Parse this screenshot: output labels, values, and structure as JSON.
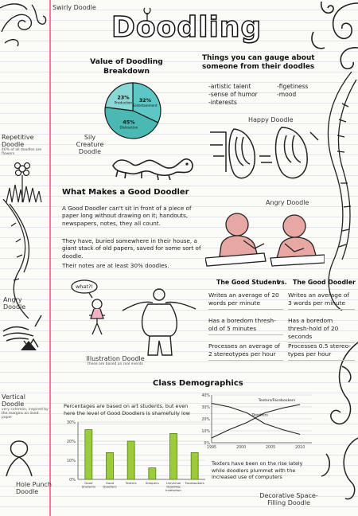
{
  "header": {
    "title": "Doodling"
  },
  "labels": {
    "swirly": "Swirly Doodle",
    "repetitive": "Repetitive Doodle",
    "repetitive_note": "40% of all doodles are flowers",
    "sily_creature": "Sily Creature Doodle",
    "happy": "Happy Doodle",
    "angry_right": "Angry Doodle",
    "angry_left": "Angry Doodle",
    "illustration": "Illustration Doodle",
    "illustration_note": "these are based on real events",
    "vertical": "Vertical Doodle",
    "vertical_note": "very common, inspired by the margins on lined paper",
    "hole_punch": "Hole Punch Doodle",
    "decorative": "Decorative Space-Filling Doodle",
    "speech_bubble": "what?!"
  },
  "value_section": {
    "title": "Value of Doodling Breakdown"
  },
  "gauge": {
    "title": "Things you can gauge about someone from their doodles",
    "traits_left": [
      "-artistic talent",
      "-sense of humor",
      "-interests"
    ],
    "traits_right": [
      "-figetiness",
      "-mood"
    ]
  },
  "good_doodler": {
    "title": "What Makes a Good Doodler",
    "paragraphs": [
      "A Good Doodler can't sit in front of a piece of paper long without drawing on it; handouts, newspapers, notes, they all count.",
      "They have, buried somewhere in their house, a giant stack of old papers, saved for some sort of doodle.",
      "Their notes are at least 30% doodles."
    ]
  },
  "comparison": {
    "left_head": "The Good Student",
    "vs": "vs.",
    "right_head": "The Good Doodler",
    "left": [
      "Writes an average of 20 words per minute",
      "Has a boredom thresh-old of 5 minutes",
      "Processes an average of 2 stereotypes per hour"
    ],
    "right": [
      "Writes an average of 3 words per minute",
      "Has a boredom thresh-hold of 20 seconds",
      "Processes 0.5 stereo-types per hour"
    ]
  },
  "demographics": {
    "title": "Class Demographics",
    "bar_caption": "Percentages are based on art students, but even here the level of Good Doodlers is shamefully low",
    "line_caption": "Texters have been on the rise lately while doodlers plummet with the increased use of computers"
  },
  "colors": {
    "pie": "#5cc7c4",
    "bars": "#9ccc3c",
    "margin": "#f07aa0"
  },
  "chart_data": [
    {
      "type": "pie",
      "slices": [
        {
          "label": "Entertainment",
          "value": 32
        },
        {
          "label": "Distraction",
          "value": 45
        },
        {
          "label": "Production",
          "value": 23
        }
      ],
      "value_labels": [
        "32%",
        "45%",
        "23%"
      ]
    },
    {
      "type": "bar",
      "categories": [
        "Good Students",
        "Good Doodlers",
        "Texters",
        "Sleepers",
        "Universal Doodling Institution",
        "Facebookers"
      ],
      "values": [
        26,
        14,
        20,
        6,
        24,
        14
      ],
      "ylim": [
        0,
        30
      ],
      "yticks": [
        "30%",
        "20%",
        "10%",
        "0%"
      ],
      "grid": true
    },
    {
      "type": "line",
      "x_ticks": [
        "1995",
        "2000",
        "2005",
        "2010"
      ],
      "xlim": [
        1995,
        2012
      ],
      "ylim": [
        0,
        40
      ],
      "yticks": [
        "40%",
        "30%",
        "20%",
        "10%",
        "0%"
      ],
      "series": [
        {
          "name": "Texters/Facebookers",
          "x": [
            1995,
            1998,
            2001,
            2004,
            2007,
            2010
          ],
          "y": [
            4,
            11,
            17,
            25,
            29,
            32
          ]
        },
        {
          "name": "Doodlers",
          "x": [
            1995,
            1998,
            2001,
            2004,
            2007,
            2010
          ],
          "y": [
            33,
            30,
            25,
            16,
            11,
            7
          ]
        }
      ],
      "grid": true
    }
  ]
}
